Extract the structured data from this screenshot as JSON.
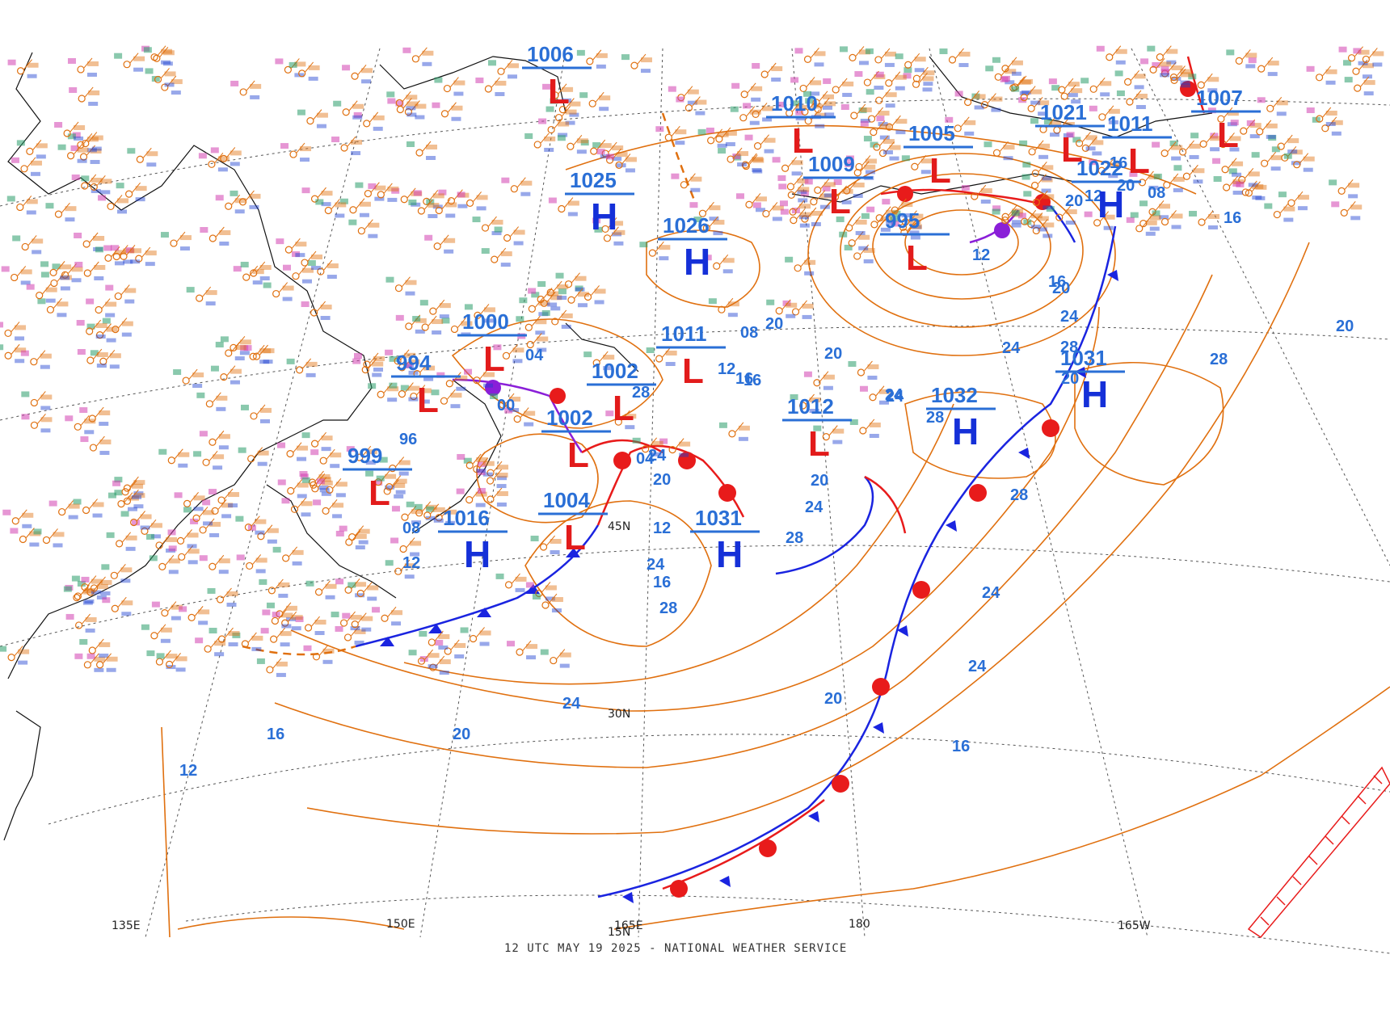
{
  "footer": "12 UTC MAY 19 2025 - NATIONAL WEATHER SERVICE",
  "lon_labels": [
    "135E",
    "150E",
    "165E",
    "180",
    "165W"
  ],
  "lat_labels": [
    "30N",
    "45N",
    "15N"
  ],
  "pressure_centers": [
    {
      "type": "H",
      "value": "1025"
    },
    {
      "type": "H",
      "value": "1026"
    },
    {
      "type": "H",
      "value": "1031"
    },
    {
      "type": "H",
      "value": "1016"
    },
    {
      "type": "H",
      "value": "1032"
    },
    {
      "type": "H",
      "value": "1031"
    },
    {
      "type": "H",
      "value": "1022"
    },
    {
      "type": "L",
      "value": "1002"
    },
    {
      "type": "L",
      "value": "1002"
    },
    {
      "type": "L",
      "value": "1004"
    },
    {
      "type": "L",
      "value": "994"
    },
    {
      "type": "L",
      "value": "999"
    },
    {
      "type": "L",
      "value": "1011"
    },
    {
      "type": "L",
      "value": "1010"
    },
    {
      "type": "L",
      "value": "995"
    },
    {
      "type": "L",
      "value": "1005"
    },
    {
      "type": "L",
      "value": "1009"
    },
    {
      "type": "L",
      "value": "1000"
    },
    {
      "type": "L",
      "value": "1006"
    },
    {
      "type": "L",
      "value": "1021"
    },
    {
      "type": "L",
      "value": "1011"
    },
    {
      "type": "L",
      "value": "1007"
    },
    {
      "type": "L",
      "value": "1012"
    }
  ],
  "isobar_labels": [
    "08",
    "12",
    "16",
    "20",
    "24",
    "28",
    "04",
    "00",
    "96",
    "12",
    "16",
    "20",
    "24",
    "28",
    "20",
    "24",
    "16",
    "12",
    "08",
    "04",
    "20",
    "24",
    "28",
    "16",
    "20",
    "24",
    "28",
    "20",
    "16",
    "12",
    "24",
    "28",
    "20",
    "16",
    "12",
    "08",
    "20",
    "24",
    "28",
    "20",
    "24",
    "16",
    "12",
    "20",
    "24",
    "28",
    "16",
    "20",
    "24"
  ],
  "colors": {
    "isobar": "#e0700f",
    "cold_front": "#1a24e0",
    "warm_front": "#e81b1b",
    "occluded_front": "#8a1fd8",
    "high": "#1530d8",
    "low": "#e21b1b",
    "label": "#2a6fd6",
    "coast": "#111111",
    "grid": "#555555"
  }
}
